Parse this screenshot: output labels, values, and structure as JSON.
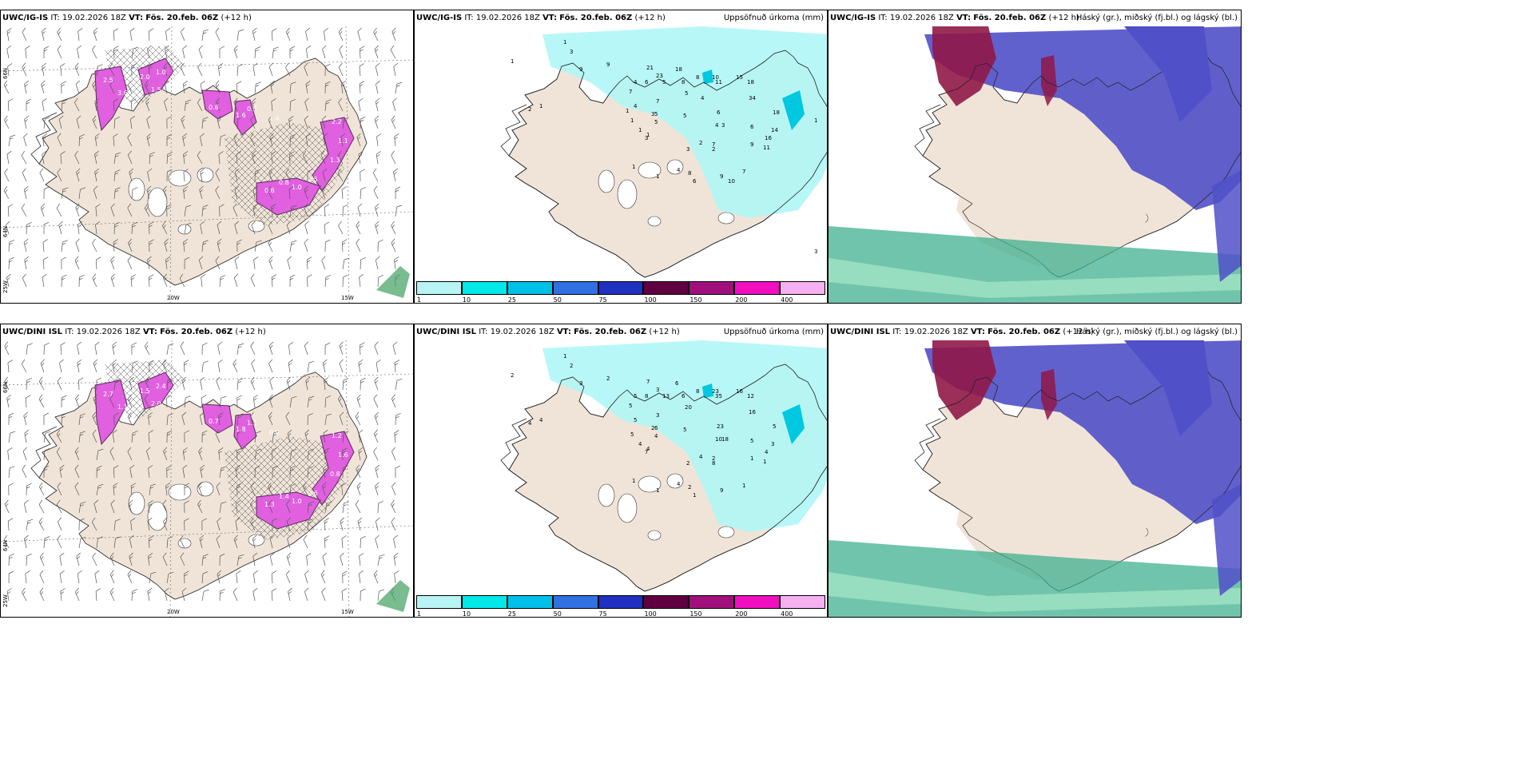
{
  "rows": [
    {
      "model": "UWC/IG-IS",
      "it": "IT: 19.02.2026 18Z",
      "vt_label": "VT:",
      "vt": "Fös. 20.feb. 06Z",
      "lead": "(+12 h)",
      "precip_values": [
        "1",
        "3",
        "1",
        "9",
        "9",
        "21",
        "23",
        "18",
        "4",
        "7",
        "6",
        "5",
        "8",
        "8",
        "10",
        "15",
        "18",
        "34",
        "5",
        "11",
        "6",
        "3",
        "6",
        "9",
        "11",
        "2",
        "1",
        "1",
        "1",
        "3",
        "7",
        "4",
        "5",
        "5",
        "2",
        "4",
        "7",
        "3",
        "3",
        "5",
        "1",
        "4",
        "2",
        "9",
        "7",
        "16",
        "18",
        "14",
        "8",
        "6",
        "1",
        "1",
        "1",
        "4",
        "1",
        "3",
        "10"
      ],
      "snow_labels": [
        "2.5",
        "3.6",
        "1.0",
        "1.5",
        "2.0",
        "0.6",
        "1.6",
        "0.5",
        "1.4",
        "2.2",
        "1.1",
        "1.3",
        "0.8",
        "1.0",
        "0.6",
        "0.5"
      ]
    },
    {
      "model": "UWC/DINI ISL",
      "it": "IT: 19.02.2026 18Z",
      "vt_label": "VT:",
      "vt": "Fös. 20.feb. 06Z",
      "lead": "(+12 h)",
      "precip_values": [
        "1",
        "2",
        "2",
        "3",
        "2",
        "7",
        "3",
        "6",
        "5",
        "5",
        "8",
        "13",
        "6",
        "8",
        "23",
        "16",
        "12",
        "16",
        "20",
        "35",
        "23",
        "18",
        "5",
        "1",
        "1",
        "4",
        "4",
        "5",
        "4",
        "7",
        "3",
        "5",
        "6",
        "5",
        "4",
        "10",
        "2",
        "2",
        "2",
        "4",
        "1",
        "4",
        "8",
        "9",
        "1",
        "4",
        "5",
        "3",
        "2",
        "1",
        "1",
        "4"
      ],
      "snow_labels": [
        "2.7",
        "1.1",
        "2.4",
        "2.0",
        "1.5",
        "0.7",
        "1.8",
        "1.1",
        "0.9",
        "1.2",
        "1.6",
        "0.8",
        "1.4",
        "1.0",
        "1.3",
        "0.6"
      ]
    }
  ],
  "precip_title": "Uppsöfnuð úrkoma (mm)",
  "cloud_title": "Háský (gr.), miðský (fj.bl.) og lágský (bl.)",
  "axes": {
    "lat": [
      "66N",
      "64N",
      "25W"
    ],
    "lon": [
      "20W",
      "15W"
    ]
  },
  "colorbar": {
    "ticks": [
      "1",
      "10",
      "25",
      "50",
      "75",
      "100",
      "150",
      "200",
      "400"
    ],
    "colors": [
      "#b8f4f4",
      "#00e8e8",
      "#00c0e8",
      "#3070e0",
      "#2030c0",
      "#600040",
      "#a0107c",
      "#f010c0",
      "#f4b0f0"
    ]
  },
  "colors": {
    "land": "#f0e4d8",
    "precip_light": "#b0f6f6",
    "snow_magenta": "#e060e0",
    "cloud_low": "#5050c8",
    "cloud_high": "#901848",
    "cloud_mid": "#40b090"
  }
}
